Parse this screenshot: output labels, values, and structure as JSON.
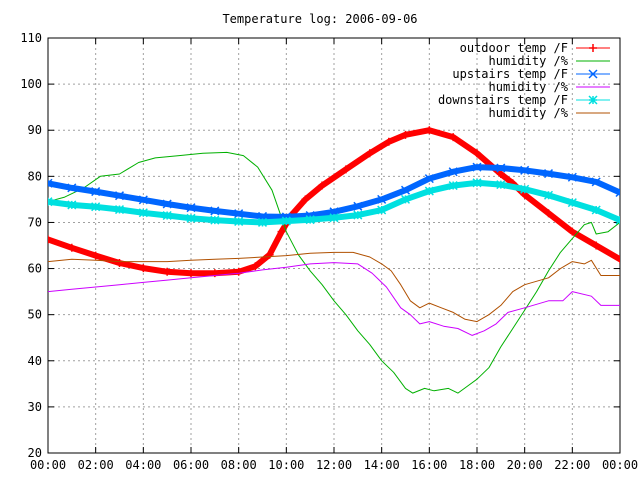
{
  "chart_data": {
    "type": "line",
    "title": "Temperature log: 2006-09-06",
    "xlabel": "",
    "ylabel": "",
    "xlim": [
      0,
      24
    ],
    "ylim": [
      20,
      110
    ],
    "grid": true,
    "legend_position": "top-right",
    "x_tick_labels": [
      "00:00",
      "02:00",
      "04:00",
      "06:00",
      "08:00",
      "10:00",
      "12:00",
      "14:00",
      "16:00",
      "18:00",
      "20:00",
      "22:00",
      "00:00"
    ],
    "x_ticks": [
      0,
      2,
      4,
      6,
      8,
      10,
      12,
      14,
      16,
      18,
      20,
      22,
      24
    ],
    "y_ticks": [
      20,
      30,
      40,
      50,
      60,
      70,
      80,
      90,
      100,
      110
    ],
    "series": [
      {
        "name": "outdoor temp /F",
        "color": "#ff0000",
        "marker": "plus",
        "width": 6,
        "points": [
          [
            0,
            66.3
          ],
          [
            1,
            64.5
          ],
          [
            2,
            62.8
          ],
          [
            3,
            61.2
          ],
          [
            4,
            60.1
          ],
          [
            5,
            59.3
          ],
          [
            6,
            59.0
          ],
          [
            7,
            59.0
          ],
          [
            8,
            59.3
          ],
          [
            8.7,
            60.5
          ],
          [
            9.3,
            63.0
          ],
          [
            9.8,
            68.0
          ],
          [
            10.2,
            71.5
          ],
          [
            10.8,
            75.0
          ],
          [
            11.5,
            78.0
          ],
          [
            12.5,
            81.5
          ],
          [
            13.5,
            85.0
          ],
          [
            14.3,
            87.5
          ],
          [
            15.0,
            89.0
          ],
          [
            16.0,
            90.0
          ],
          [
            17.0,
            88.5
          ],
          [
            18.0,
            85.0
          ],
          [
            19.0,
            80.5
          ],
          [
            19.5,
            78.5
          ],
          [
            20.0,
            76.0
          ],
          [
            21.0,
            72.0
          ],
          [
            22.0,
            68.0
          ],
          [
            23.0,
            65.0
          ],
          [
            24.0,
            62.0
          ]
        ]
      },
      {
        "name": "humidity /%",
        "color": "#00b000",
        "marker": "none",
        "width": 1,
        "points": [
          [
            0,
            74.5
          ],
          [
            0.7,
            75.5
          ],
          [
            1.5,
            77.5
          ],
          [
            2.2,
            80.0
          ],
          [
            3.0,
            80.5
          ],
          [
            3.8,
            83.0
          ],
          [
            4.5,
            84.0
          ],
          [
            5.5,
            84.5
          ],
          [
            6.5,
            85.0
          ],
          [
            7.5,
            85.2
          ],
          [
            8.2,
            84.5
          ],
          [
            8.8,
            82.0
          ],
          [
            9.4,
            77.0
          ],
          [
            9.7,
            72.5
          ],
          [
            10.0,
            68.0
          ],
          [
            10.5,
            63.0
          ],
          [
            11.0,
            59.5
          ],
          [
            11.5,
            56.5
          ],
          [
            12.0,
            53.0
          ],
          [
            12.5,
            50.0
          ],
          [
            13.0,
            46.5
          ],
          [
            13.5,
            43.5
          ],
          [
            14.0,
            40.0
          ],
          [
            14.5,
            37.5
          ],
          [
            15.0,
            34.0
          ],
          [
            15.3,
            33.0
          ],
          [
            15.8,
            34.0
          ],
          [
            16.2,
            33.5
          ],
          [
            16.8,
            34.0
          ],
          [
            17.2,
            33.0
          ],
          [
            17.6,
            34.5
          ],
          [
            18.0,
            36.0
          ],
          [
            18.5,
            38.5
          ],
          [
            19.0,
            43.0
          ],
          [
            19.5,
            47.0
          ],
          [
            20.0,
            51.0
          ],
          [
            20.5,
            55.0
          ],
          [
            21.0,
            59.5
          ],
          [
            21.5,
            63.5
          ],
          [
            22.0,
            66.5
          ],
          [
            22.5,
            69.5
          ],
          [
            22.8,
            70.0
          ],
          [
            23.0,
            67.5
          ],
          [
            23.5,
            68.0
          ],
          [
            24.0,
            70.0
          ]
        ]
      },
      {
        "name": "upstairs temp /F",
        "color": "#0066ff",
        "marker": "cross",
        "width": 6,
        "points": [
          [
            0,
            78.5
          ],
          [
            1,
            77.5
          ],
          [
            2,
            76.7
          ],
          [
            3,
            75.8
          ],
          [
            4,
            74.9
          ],
          [
            5,
            74.0
          ],
          [
            6,
            73.2
          ],
          [
            7,
            72.5
          ],
          [
            8,
            71.9
          ],
          [
            9,
            71.3
          ],
          [
            10,
            71.2
          ],
          [
            11,
            71.5
          ],
          [
            12,
            72.3
          ],
          [
            13,
            73.5
          ],
          [
            14,
            75.0
          ],
          [
            15,
            77.0
          ],
          [
            16,
            79.5
          ],
          [
            17,
            81.0
          ],
          [
            18,
            82.0
          ],
          [
            19,
            81.8
          ],
          [
            20,
            81.3
          ],
          [
            21,
            80.6
          ],
          [
            22,
            79.8
          ],
          [
            23,
            78.8
          ],
          [
            24,
            76.5
          ]
        ]
      },
      {
        "name": "humidity /%",
        "color": "#cc00ff",
        "marker": "none",
        "width": 1,
        "points": [
          [
            0,
            55.0
          ],
          [
            1,
            55.5
          ],
          [
            2,
            56.0
          ],
          [
            3,
            56.5
          ],
          [
            4,
            57.0
          ],
          [
            5,
            57.5
          ],
          [
            6,
            58.0
          ],
          [
            7,
            58.5
          ],
          [
            8,
            59.0
          ],
          [
            9,
            59.7
          ],
          [
            10,
            60.3
          ],
          [
            11,
            61.0
          ],
          [
            12,
            61.3
          ],
          [
            13,
            61.0
          ],
          [
            13.6,
            59.0
          ],
          [
            14.2,
            56.0
          ],
          [
            14.8,
            51.5
          ],
          [
            15.2,
            50.0
          ],
          [
            15.6,
            48.0
          ],
          [
            16.0,
            48.5
          ],
          [
            16.6,
            47.5
          ],
          [
            17.2,
            47.0
          ],
          [
            17.8,
            45.5
          ],
          [
            18.3,
            46.5
          ],
          [
            18.8,
            48.0
          ],
          [
            19.3,
            50.5
          ],
          [
            20.0,
            51.5
          ],
          [
            21.0,
            53.0
          ],
          [
            21.6,
            53.0
          ],
          [
            22.0,
            55.0
          ],
          [
            22.8,
            54.0
          ],
          [
            23.2,
            52.0
          ],
          [
            24.0,
            52.0
          ]
        ]
      },
      {
        "name": "downstairs temp /F",
        "color": "#00e0e0",
        "marker": "star",
        "width": 6,
        "points": [
          [
            0,
            74.5
          ],
          [
            1,
            73.8
          ],
          [
            2,
            73.4
          ],
          [
            3,
            72.8
          ],
          [
            4,
            72.1
          ],
          [
            5,
            71.5
          ],
          [
            6,
            70.9
          ],
          [
            7,
            70.5
          ],
          [
            8,
            70.2
          ],
          [
            9,
            70.0
          ],
          [
            10,
            70.3
          ],
          [
            11,
            70.6
          ],
          [
            12,
            71.0
          ],
          [
            13,
            71.6
          ],
          [
            14,
            72.7
          ],
          [
            15,
            75.0
          ],
          [
            16,
            76.8
          ],
          [
            17,
            78.0
          ],
          [
            18,
            78.6
          ],
          [
            19,
            78.2
          ],
          [
            20,
            77.2
          ],
          [
            21,
            75.9
          ],
          [
            22,
            74.3
          ],
          [
            23,
            72.7
          ],
          [
            24,
            70.5
          ]
        ]
      },
      {
        "name": "humidity /%",
        "color": "#b05000",
        "marker": "none",
        "width": 1,
        "points": [
          [
            0,
            61.5
          ],
          [
            1,
            62.0
          ],
          [
            2,
            61.8
          ],
          [
            3,
            61.5
          ],
          [
            4,
            61.5
          ],
          [
            5,
            61.5
          ],
          [
            6,
            61.8
          ],
          [
            7,
            62.0
          ],
          [
            8,
            62.2
          ],
          [
            9,
            62.5
          ],
          [
            10,
            62.8
          ],
          [
            11,
            63.3
          ],
          [
            12,
            63.5
          ],
          [
            12.8,
            63.5
          ],
          [
            13.5,
            62.5
          ],
          [
            14.0,
            61.0
          ],
          [
            14.4,
            59.5
          ],
          [
            14.8,
            56.5
          ],
          [
            15.2,
            53.0
          ],
          [
            15.6,
            51.5
          ],
          [
            16.0,
            52.5
          ],
          [
            16.5,
            51.5
          ],
          [
            17.0,
            50.5
          ],
          [
            17.5,
            49.0
          ],
          [
            18.0,
            48.5
          ],
          [
            18.5,
            50.0
          ],
          [
            19.0,
            52.0
          ],
          [
            19.5,
            55.0
          ],
          [
            20.0,
            56.5
          ],
          [
            21.0,
            58.0
          ],
          [
            21.5,
            60.0
          ],
          [
            22.0,
            61.5
          ],
          [
            22.5,
            61.0
          ],
          [
            22.8,
            61.8
          ],
          [
            23.2,
            58.5
          ],
          [
            24.0,
            58.5
          ]
        ]
      }
    ]
  }
}
